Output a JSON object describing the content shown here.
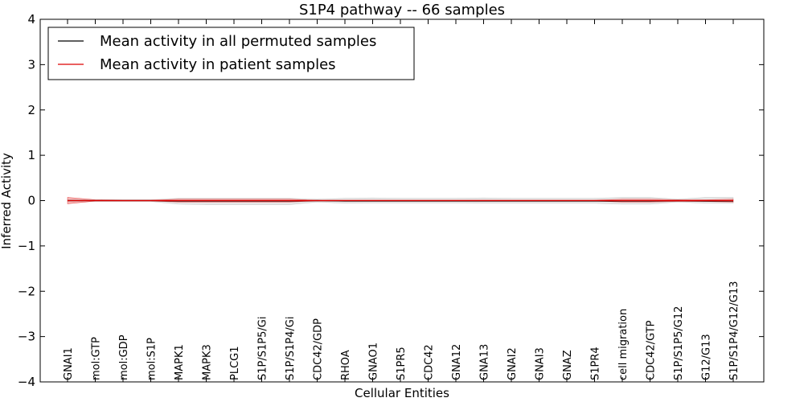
{
  "chart_data": {
    "type": "line",
    "title": "S1P4 pathway -- 66 samples",
    "xlabel": "Cellular Entities",
    "ylabel": "Inferred Activity",
    "ylim": [
      -4,
      4
    ],
    "yticks": [
      -4,
      -3,
      -2,
      -1,
      0,
      1,
      2,
      3,
      4
    ],
    "ytick_labels": [
      "−4",
      "−3",
      "−2",
      "−1",
      "0",
      "1",
      "2",
      "3",
      "4"
    ],
    "grid": false,
    "legend_position": "top-left",
    "categories": [
      "GNAI1",
      "mol:GTP",
      "mol:GDP",
      "mol:S1P",
      "MAPK1",
      "MAPK3",
      "PLCG1",
      "S1P/S1P5/Gi",
      "S1P/S1P4/Gi",
      "CDC42/GDP",
      "RHOA",
      "GNAO1",
      "S1PR5",
      "CDC42",
      "GNA12",
      "GNA13",
      "GNAI2",
      "GNAI3",
      "GNAZ",
      "S1PR4",
      "cell migration",
      "CDC42/GTP",
      "S1P/S1P5/G12",
      "G12/G13",
      "S1P/S1P4/G12/G13"
    ],
    "series": [
      {
        "name": "Mean activity in all permuted samples",
        "color": "#000000",
        "band_color": "#bbbbbb",
        "values": [
          0,
          0,
          0,
          0,
          -0.01,
          -0.01,
          -0.01,
          -0.01,
          -0.01,
          0,
          -0.01,
          -0.01,
          -0.01,
          -0.01,
          -0.01,
          -0.01,
          -0.01,
          -0.01,
          -0.01,
          -0.01,
          -0.01,
          -0.01,
          0,
          -0.01,
          -0.01
        ],
        "lower": [
          -0.02,
          -0.02,
          -0.02,
          -0.02,
          -0.08,
          -0.09,
          -0.09,
          -0.09,
          -0.09,
          -0.03,
          -0.06,
          -0.05,
          -0.05,
          -0.05,
          -0.05,
          -0.06,
          -0.06,
          -0.06,
          -0.06,
          -0.06,
          -0.08,
          -0.08,
          -0.03,
          -0.06,
          -0.06
        ],
        "upper": [
          0.02,
          0.02,
          0.02,
          0.02,
          0.05,
          0.05,
          0.05,
          0.05,
          0.05,
          0.03,
          0.05,
          0.06,
          0.05,
          0.05,
          0.05,
          0.06,
          0.05,
          0.05,
          0.05,
          0.05,
          0.07,
          0.07,
          0.03,
          0.07,
          0.07
        ]
      },
      {
        "name": "Mean activity in patient samples",
        "color": "#dd0000",
        "band_color": "#f08080",
        "values": [
          0,
          0,
          0,
          0,
          0,
          0,
          0,
          0,
          0,
          0,
          0,
          0,
          0,
          0,
          0,
          0,
          0,
          0,
          0,
          0,
          0,
          0,
          0,
          0,
          0
        ],
        "lower": [
          -0.07,
          -0.01,
          -0.01,
          -0.01,
          -0.03,
          -0.03,
          -0.03,
          -0.03,
          -0.03,
          -0.01,
          -0.01,
          -0.01,
          -0.01,
          -0.01,
          -0.01,
          -0.01,
          -0.01,
          -0.01,
          -0.01,
          -0.01,
          -0.03,
          -0.03,
          -0.02,
          -0.02,
          -0.03
        ],
        "upper": [
          0.07,
          0.02,
          0.01,
          0.01,
          0.03,
          0.03,
          0.03,
          0.03,
          0.03,
          0.01,
          0.01,
          0.01,
          0.01,
          0.01,
          0.01,
          0.01,
          0.01,
          0.01,
          0.01,
          0.01,
          0.03,
          0.03,
          0.02,
          0.02,
          0.03
        ]
      }
    ]
  }
}
